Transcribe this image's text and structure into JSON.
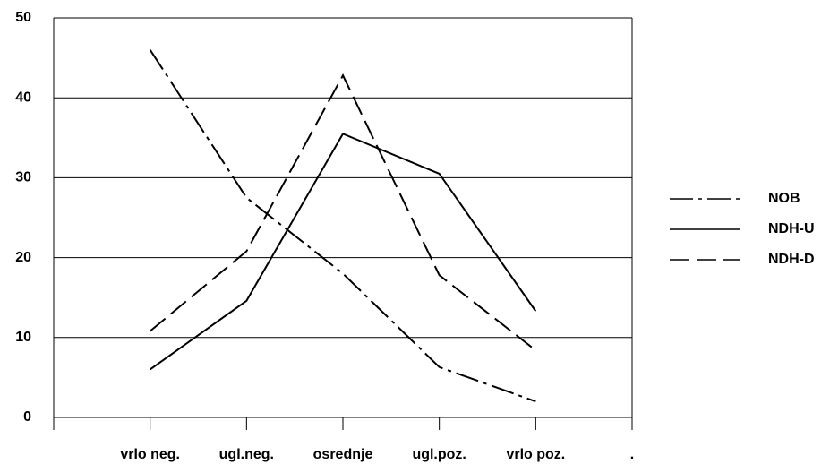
{
  "chart_data": {
    "type": "line",
    "categories": [
      null,
      "vrlo neg.",
      "ugl.neg.",
      "osrednje",
      "ugl.poz.",
      "vrlo poz.",
      "."
    ],
    "series": [
      {
        "name": "NOB",
        "color": "#000000",
        "dash": "dashdot",
        "values": [
          null,
          46,
          27.5,
          18,
          6.3,
          2,
          null
        ]
      },
      {
        "name": "NDH-U",
        "color": "#000000",
        "dash": "solid",
        "values": [
          null,
          6,
          14.6,
          35.5,
          30.5,
          13.3,
          null
        ]
      },
      {
        "name": "NDH-D",
        "color": "#000000",
        "dash": "dashed",
        "values": [
          null,
          10.8,
          20.8,
          42.8,
          17.8,
          8.4,
          null
        ]
      }
    ],
    "ylim": [
      0,
      50
    ],
    "yticks": [
      0,
      10,
      20,
      30,
      40,
      50
    ],
    "grid": true,
    "legend": "right"
  }
}
